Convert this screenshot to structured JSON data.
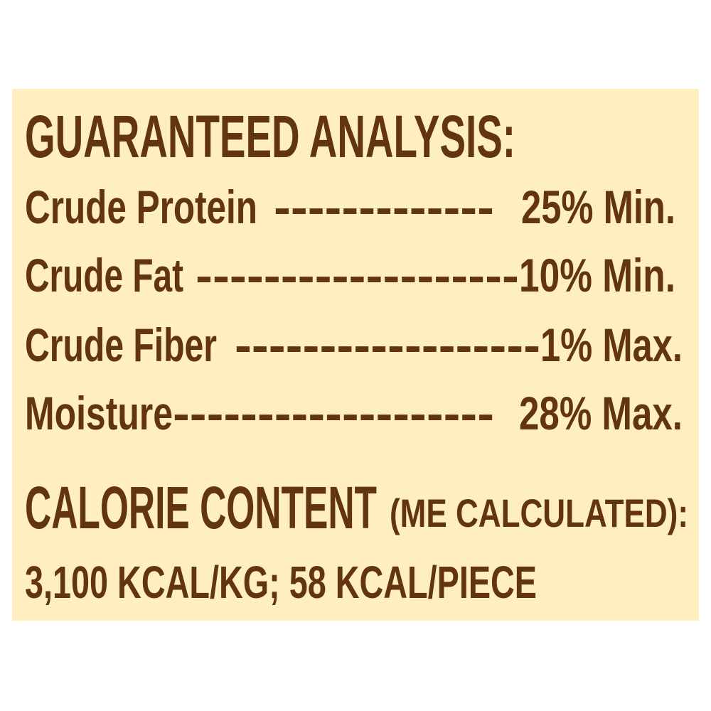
{
  "colors": {
    "background": "#FEEEC0",
    "text": "#623510"
  },
  "title": "GUARANTEED ANALYSIS:",
  "rows": [
    {
      "label": "Crude Protein",
      "dashes": "-------------",
      "value": "25% Min."
    },
    {
      "label": "Crude Fat",
      "dashes": "-------------------",
      "value": "10% Min."
    },
    {
      "label": "Crude Fiber",
      "dashes": "------------------",
      "value": "1% Max."
    },
    {
      "label": "Moisture",
      "dashes": "-------------------",
      "value": "28% Max."
    }
  ],
  "calorie": {
    "heading": "CALORIE CONTENT",
    "note": "(ME CALCULATED):",
    "value": "3,100 KCAL/KG; 58 KCAL/PIECE"
  }
}
